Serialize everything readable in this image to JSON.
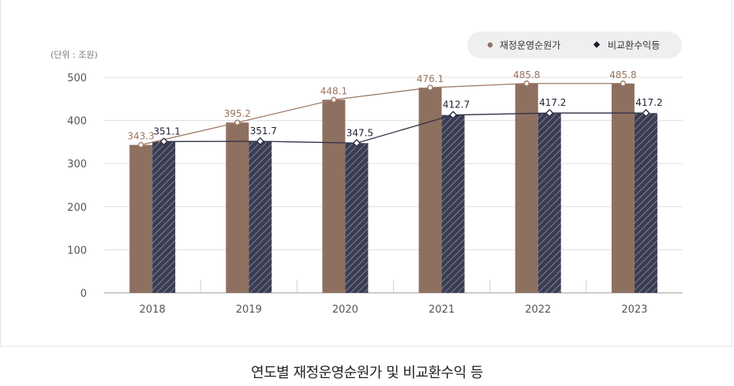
{
  "caption": "연도별 재정운영순원가 및 비교환수익 등",
  "chart_data": {
    "type": "bar",
    "unit_label": "(단위 : 조원)",
    "categories": [
      "2018",
      "2019",
      "2020",
      "2021",
      "2022",
      "2023"
    ],
    "y_ticks": [
      "0",
      "100",
      "200",
      "300",
      "400",
      "500"
    ],
    "ylim": [
      0,
      500
    ],
    "grid": true,
    "legend_position": "top-right",
    "series": [
      {
        "name": "재정운영순원가",
        "values": [
          343.3,
          395.2,
          448.1,
          476.1,
          485.8,
          485.8
        ],
        "labels": [
          "343.3",
          "395.2",
          "448.1",
          "476.1",
          "485.8",
          "485.8"
        ],
        "color": "#8e7060",
        "line_color": "#a07a66",
        "label_color": "#9b735c"
      },
      {
        "name": "비교환수익등",
        "values": [
          351.1,
          351.7,
          347.5,
          412.7,
          417.2,
          417.2
        ],
        "labels": [
          "351.1",
          "351.7",
          "347.5",
          "412.7",
          "417.2",
          "417.2"
        ],
        "color": "#3a3c52",
        "line_color": "#2e3045",
        "label_color": "#1e2030",
        "pattern": "diagonal-hatch"
      }
    ]
  }
}
